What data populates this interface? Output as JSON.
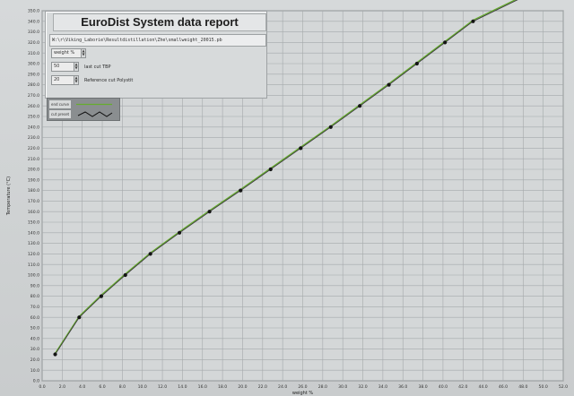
{
  "report": {
    "title": "EuroDist System data report",
    "file_path": "W:\\r\\Viking_Laborie\\Resultdistillation\\Zhe\\smallweight_20015.pb",
    "controls": [
      {
        "value": "weight %",
        "label": ""
      },
      {
        "value": "50",
        "label": "last cut TBP"
      },
      {
        "value": "20",
        "label": "Reference cut Polystit"
      }
    ]
  },
  "legend": {
    "entries": [
      {
        "label": "end curve"
      },
      {
        "label": "cut preset"
      }
    ]
  },
  "colors": {
    "curve_line": "#3c3c3c",
    "fit_line": "#66ad2e",
    "marker": "#141414",
    "grid": "#a5a9ab",
    "plot_bg": "#d4d7d8"
  },
  "chart_data": {
    "type": "line",
    "title": "",
    "xlabel": "weight %",
    "ylabel": "Temperature (°C)",
    "xlim": [
      0,
      52
    ],
    "ylim": [
      0,
      350
    ],
    "x_ticks": [
      "0.0",
      "2.0",
      "4.0",
      "6.0",
      "8.0",
      "10.0",
      "12.0",
      "14.0",
      "16.0",
      "18.0",
      "20.0",
      "22.0",
      "24.0",
      "26.0",
      "28.0",
      "30.0",
      "32.0",
      "34.0",
      "36.0",
      "38.0",
      "40.0",
      "42.0",
      "44.0",
      "46.0",
      "48.0",
      "50.0",
      "52.0"
    ],
    "y_ticks": [
      "0.0",
      "10.0",
      "20.0",
      "30.0",
      "40.0",
      "50.0",
      "60.0",
      "70.0",
      "80.0",
      "90.0",
      "100.0",
      "110.0",
      "120.0",
      "130.0",
      "140.0",
      "150.0",
      "160.0",
      "170.0",
      "180.0",
      "190.0",
      "200.0",
      "210.0",
      "220.0",
      "230.0",
      "240.0",
      "250.0",
      "260.0",
      "270.0",
      "280.0",
      "290.0",
      "300.0",
      "310.0",
      "320.0",
      "330.0",
      "340.0",
      "350.0"
    ],
    "grid": true,
    "series": [
      {
        "name": "end curve",
        "x": [
          1.3,
          3.7,
          5.9,
          8.3,
          10.8,
          13.7,
          16.7,
          19.8,
          22.8,
          25.8,
          28.8,
          31.7,
          34.6,
          37.4,
          40.2,
          43.0,
          47.8
        ],
        "y": [
          25,
          60,
          80,
          100,
          120,
          140,
          160,
          180,
          200,
          220,
          240,
          260,
          280,
          300,
          320,
          340,
          362
        ]
      }
    ]
  }
}
